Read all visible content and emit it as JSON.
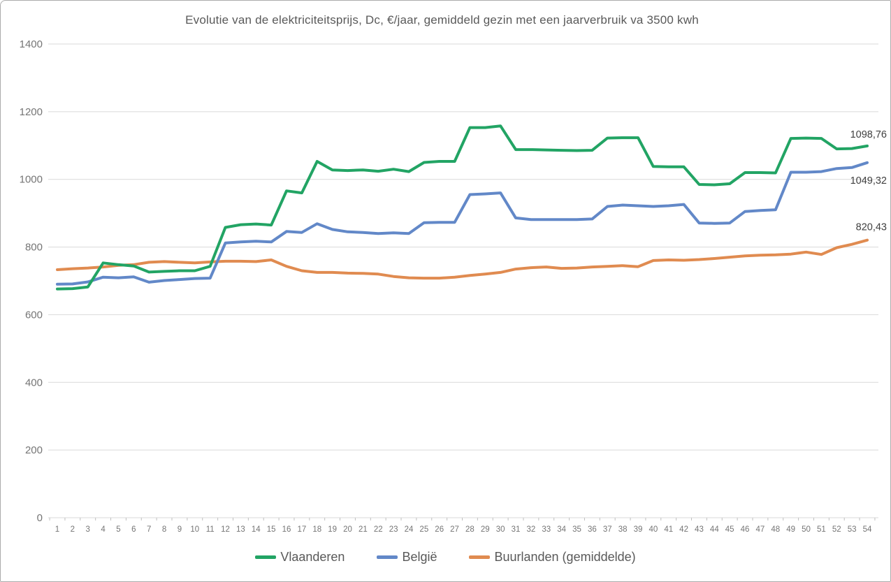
{
  "page": {
    "background": "#FFFFFF",
    "border_color": "#ABABAB"
  },
  "chart_data": {
    "type": "line",
    "title": "Evolutie van de elektriciteitsprijs, Dc, €/jaar, gemiddeld gezin met een jaarverbruik va 3500 kwh",
    "xlabel": "",
    "ylabel": "",
    "ylim": [
      0,
      1400
    ],
    "grid": true,
    "legend_position": "bottom",
    "y_ticks": [
      "0",
      "200",
      "400",
      "600",
      "800",
      "1000",
      "1200",
      "1400"
    ],
    "x_ticks": [
      "1",
      "2",
      "3",
      "4",
      "5",
      "6",
      "7",
      "8",
      "9",
      "10",
      "11",
      "12",
      "13",
      "14",
      "15",
      "16",
      "17",
      "18",
      "19",
      "20",
      "21",
      "22",
      "23",
      "24",
      "25",
      "26",
      "27",
      "28",
      "29",
      "30",
      "31",
      "32",
      "33",
      "34",
      "35",
      "36",
      "37",
      "38",
      "39",
      "40",
      "41",
      "42",
      "43",
      "44",
      "45",
      "46",
      "47",
      "48",
      "49",
      "50",
      "51",
      "52",
      "53",
      "54"
    ],
    "series": [
      {
        "name": "Vlaanderen",
        "color": "#22A464",
        "end_label": "1098,76",
        "values": [
          676,
          677,
          682,
          753,
          748,
          744,
          726,
          728,
          730,
          730,
          743,
          858,
          866,
          868,
          865,
          966,
          960,
          1053,
          1028,
          1026,
          1028,
          1024,
          1030,
          1023,
          1050,
          1053,
          1053,
          1153,
          1153,
          1158,
          1088,
          1088,
          1087,
          1086,
          1085,
          1086,
          1122,
          1123,
          1123,
          1038,
          1037,
          1037,
          985,
          984,
          987,
          1020,
          1020,
          1019,
          1121,
          1122,
          1121,
          1090,
          1091,
          1098.76
        ]
      },
      {
        "name": "België",
        "color": "#6288C8",
        "end_label": "1049,32",
        "values": [
          690,
          691,
          697,
          711,
          709,
          712,
          696,
          701,
          704,
          707,
          708,
          812,
          815,
          817,
          815,
          846,
          843,
          869,
          852,
          845,
          843,
          840,
          842,
          840,
          872,
          873,
          873,
          955,
          957,
          960,
          886,
          881,
          881,
          881,
          881,
          883,
          920,
          924,
          922,
          920,
          922,
          926,
          871,
          870,
          871,
          905,
          908,
          910,
          1021,
          1021,
          1023,
          1032,
          1035,
          1049.32
        ]
      },
      {
        "name": "Buurlanden (gemiddelde)",
        "color": "#E08B50",
        "end_label": "820,43",
        "values": [
          733,
          736,
          738,
          741,
          746,
          748,
          755,
          757,
          755,
          753,
          756,
          758,
          758,
          757,
          762,
          743,
          730,
          725,
          725,
          723,
          722,
          720,
          713,
          709,
          708,
          708,
          711,
          716,
          720,
          725,
          735,
          739,
          741,
          737,
          738,
          741,
          743,
          745,
          742,
          760,
          762,
          761,
          763,
          766,
          770,
          774,
          776,
          777,
          779,
          785,
          778,
          798,
          808,
          820.43
        ]
      }
    ],
    "colors": {
      "grid": "#D9D9D9",
      "axis": "#BFBFBF",
      "tick_text": "#757575",
      "title_text": "#595959",
      "label_text": "#404040"
    }
  }
}
